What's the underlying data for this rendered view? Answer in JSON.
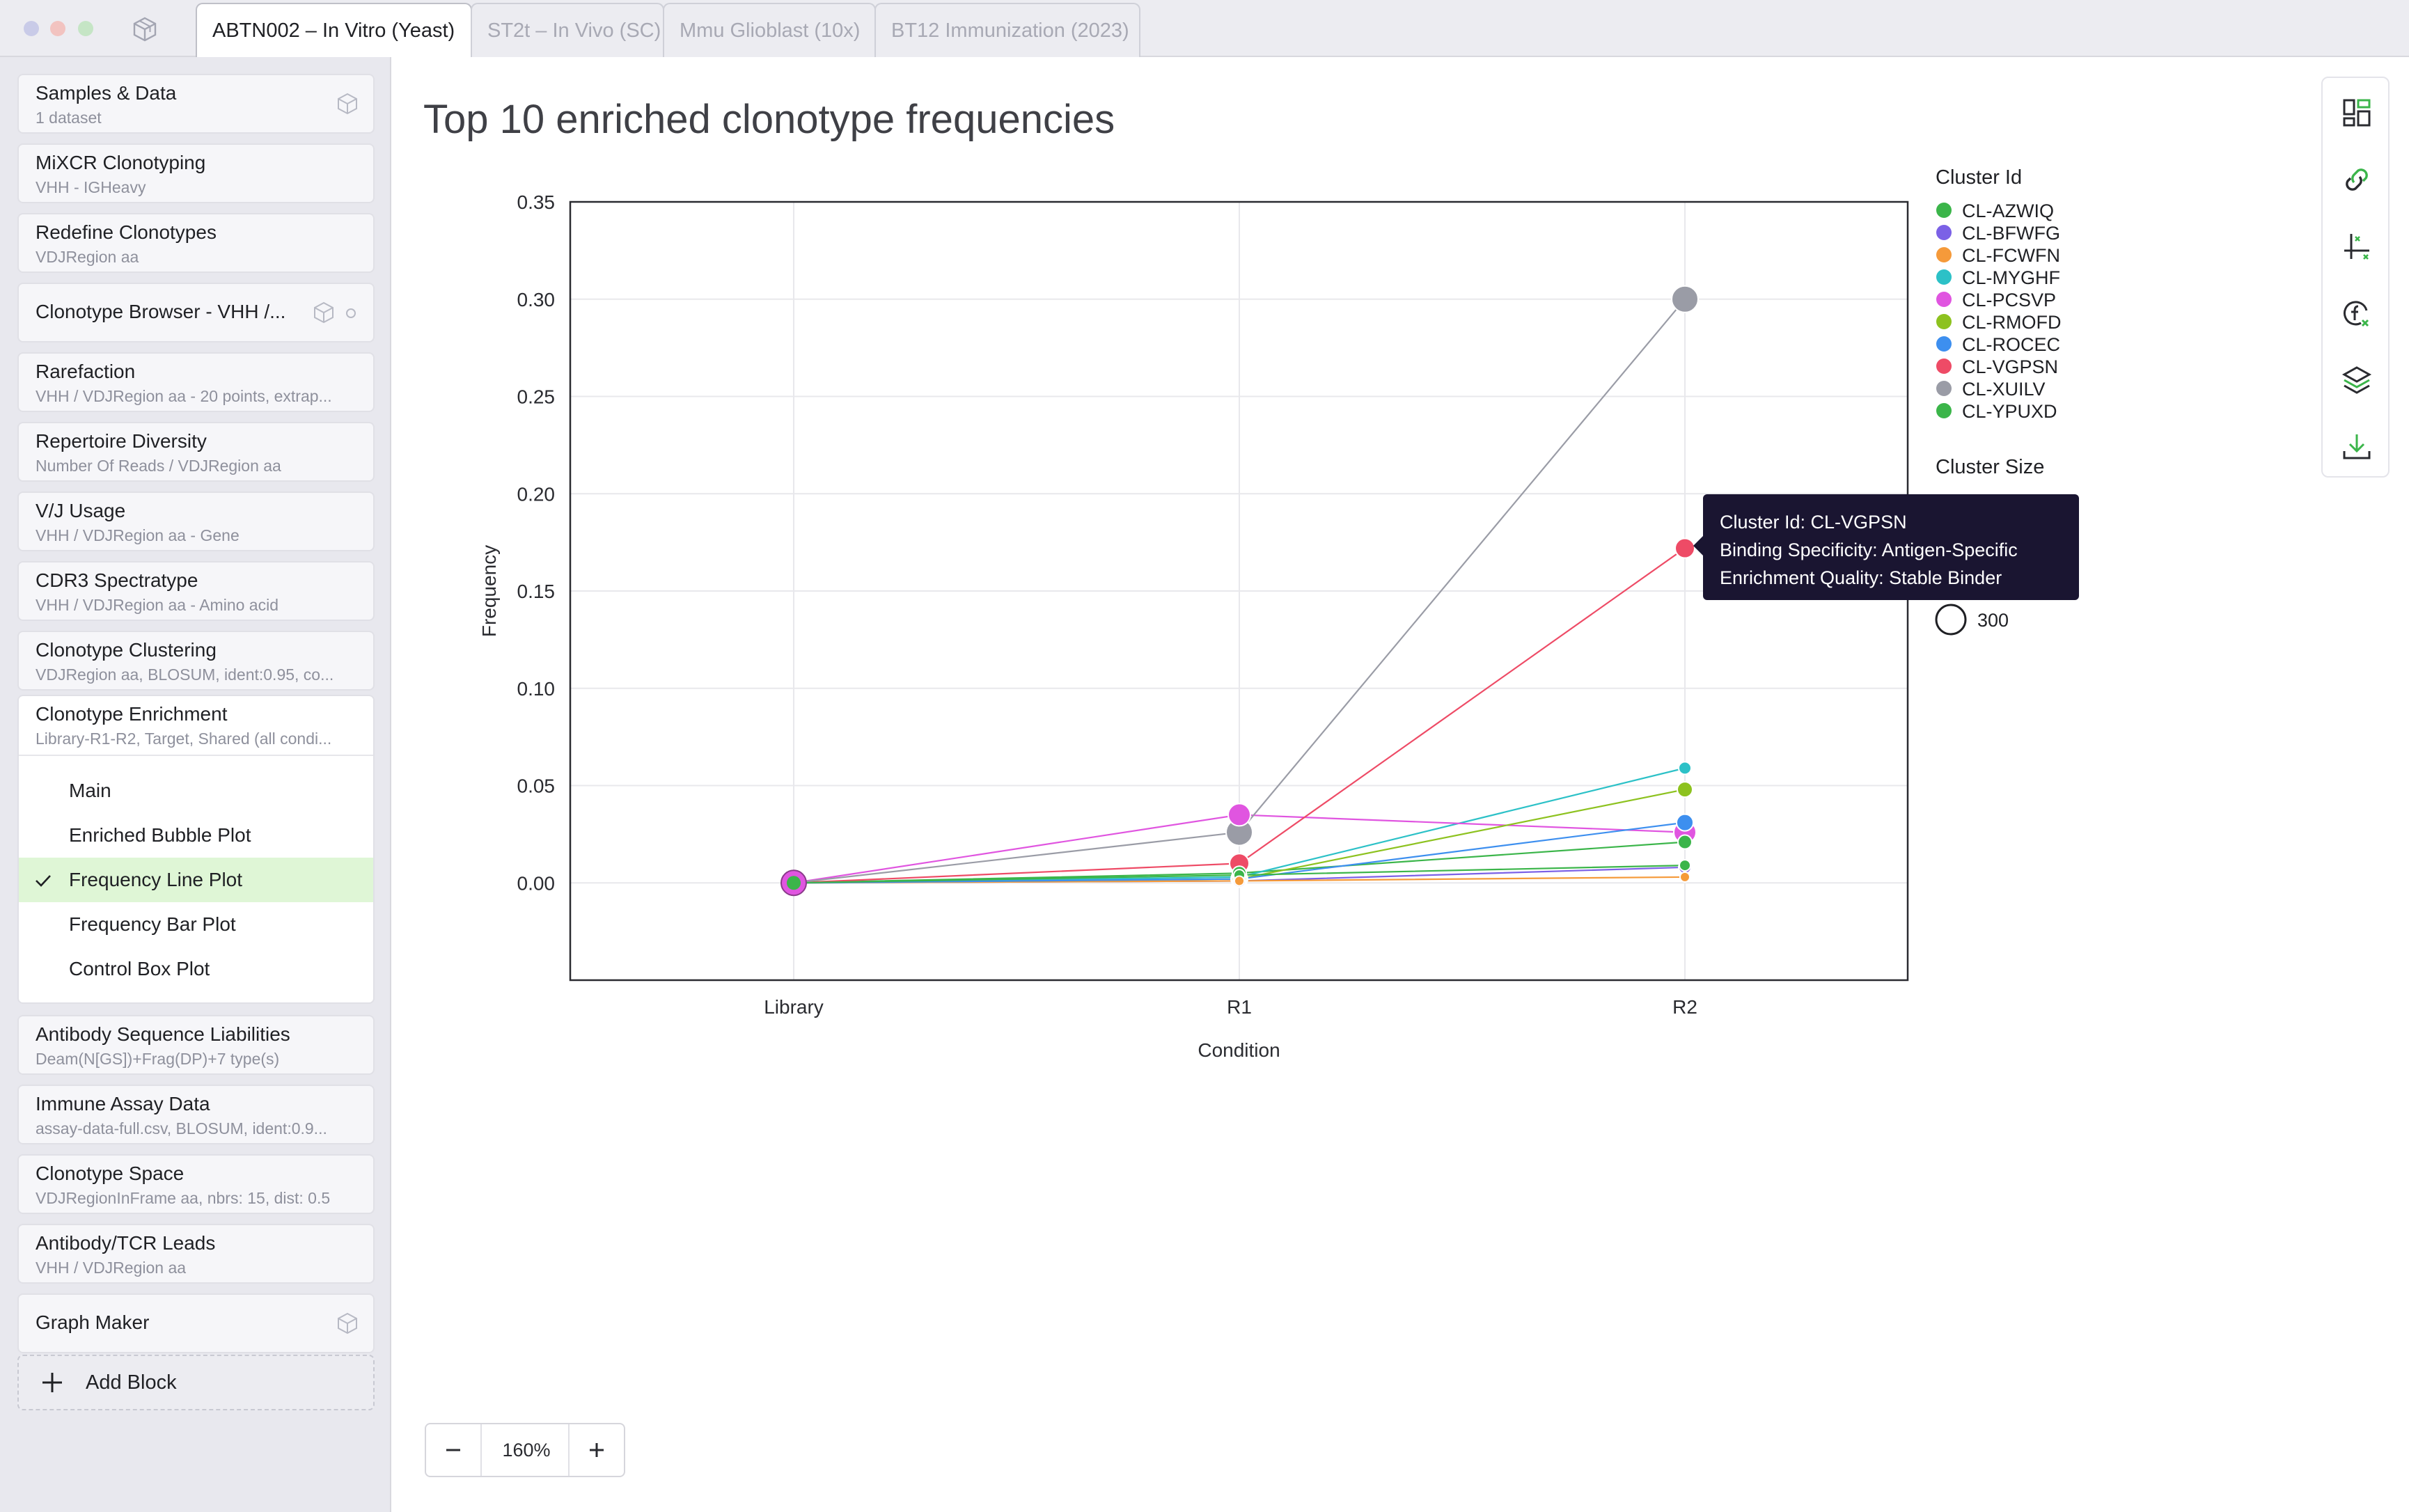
{
  "tabs": [
    {
      "label": "ABTN002 – In Vitro (Yeast)",
      "active": true
    },
    {
      "label": "ST2t – In Vivo (SC)",
      "active": false
    },
    {
      "label": "Mmu Glioblast (10x)",
      "active": false
    },
    {
      "label": "BT12 Immunization (2023)",
      "active": false
    }
  ],
  "sidebar": {
    "blocks": [
      {
        "title": "Samples & Data",
        "subtitle": "1 dataset"
      },
      {
        "title": "MiXCR Clonotyping",
        "subtitle": "VHH - IGHeavy"
      },
      {
        "title": "Redefine Clonotypes",
        "subtitle": "VDJRegion aa"
      },
      {
        "title": "Clonotype Browser - VHH /...",
        "subtitle": ""
      },
      {
        "title": "Rarefaction",
        "subtitle": "VHH / VDJRegion aa - 20 points, extrap..."
      },
      {
        "title": "Repertoire Diversity",
        "subtitle": "Number Of Reads / VDJRegion aa"
      },
      {
        "title": "V/J Usage",
        "subtitle": "VHH / VDJRegion aa - Gene"
      },
      {
        "title": "CDR3 Spectratype",
        "subtitle": "VHH / VDJRegion aa - Amino acid"
      },
      {
        "title": "Clonotype Clustering",
        "subtitle": "VDJRegion aa, BLOSUM, ident:0.95, co..."
      }
    ],
    "enrichment": {
      "title": "Clonotype Enrichment",
      "subtitle": "Library-R1-R2, Target, Shared (all condi...",
      "items": [
        "Main",
        "Enriched Bubble Plot",
        "Frequency Line Plot",
        "Frequency Bar Plot",
        "Control Box Plot"
      ],
      "selected": "Frequency Line Plot"
    },
    "blocks_after": [
      {
        "title": "Antibody Sequence Liabilities",
        "subtitle": "Deam(N[GS])+Frag(DP)+7 type(s)"
      },
      {
        "title": "Immune Assay Data",
        "subtitle": "assay-data-full.csv, BLOSUM, ident:0.9..."
      },
      {
        "title": "Clonotype Space",
        "subtitle": "VDJRegionInFrame aa, nbrs: 15, dist: 0.5"
      },
      {
        "title": "Antibody/TCR Leads",
        "subtitle": "VHH / VDJRegion aa"
      },
      {
        "title": "Graph Maker",
        "subtitle": ""
      }
    ],
    "add_block_label": "Add Block"
  },
  "main": {
    "title": "Top 10 enriched clonotype frequencies",
    "zoom": "160%"
  },
  "tooltip": {
    "line1": "Cluster Id: CL-VGPSN",
    "line2": "Binding Specificity: Antigen-Specific",
    "line3": "Enrichment Quality: Stable Binder"
  },
  "chart_data": {
    "type": "line",
    "xlabel": "Condition",
    "ylabel": "Frequency",
    "categories": [
      "Library",
      "R1",
      "R2"
    ],
    "yticks": [
      "0.00",
      "0.05",
      "0.10",
      "0.15",
      "0.20",
      "0.25",
      "0.30",
      "0.35"
    ],
    "ylim": [
      -0.05,
      0.35
    ],
    "grid": true,
    "legend_title": "Cluster Id",
    "size_legend_title": "Cluster Size",
    "size_legend_value": "300",
    "series": [
      {
        "name": "CL-AZWIQ",
        "color": "#3bb54a",
        "values": [
          0.0,
          0.005,
          0.021
        ],
        "size": 10
      },
      {
        "name": "CL-BFWFG",
        "color": "#7b61e6",
        "values": [
          0.0,
          0.001,
          0.008
        ],
        "size": 9
      },
      {
        "name": "CL-FCWFN",
        "color": "#f59a3a",
        "values": [
          0.0,
          0.001,
          0.003
        ],
        "size": 7
      },
      {
        "name": "CL-MYGHF",
        "color": "#2cc1c7",
        "values": [
          0.0,
          0.003,
          0.059
        ],
        "size": 9
      },
      {
        "name": "CL-PCSVP",
        "color": "#e055e0",
        "values": [
          0.0,
          0.035,
          0.026
        ],
        "size": 16
      },
      {
        "name": "CL-RMOFD",
        "color": "#8dc21f",
        "values": [
          0.0,
          0.002,
          0.048
        ],
        "size": 11
      },
      {
        "name": "CL-ROCEC",
        "color": "#3d8fef",
        "values": [
          0.0,
          0.002,
          0.031
        ],
        "size": 12
      },
      {
        "name": "CL-VGPSN",
        "color": "#ee4b66",
        "values": [
          0.0,
          0.01,
          0.172
        ],
        "size": 14
      },
      {
        "name": "CL-XUILV",
        "color": "#9a9ca6",
        "values": [
          0.0,
          0.026,
          0.3
        ],
        "size": 19
      },
      {
        "name": "CL-YPUXD",
        "color": "#3bb54a",
        "values": [
          0.0,
          0.004,
          0.009
        ],
        "size": 8
      }
    ]
  }
}
